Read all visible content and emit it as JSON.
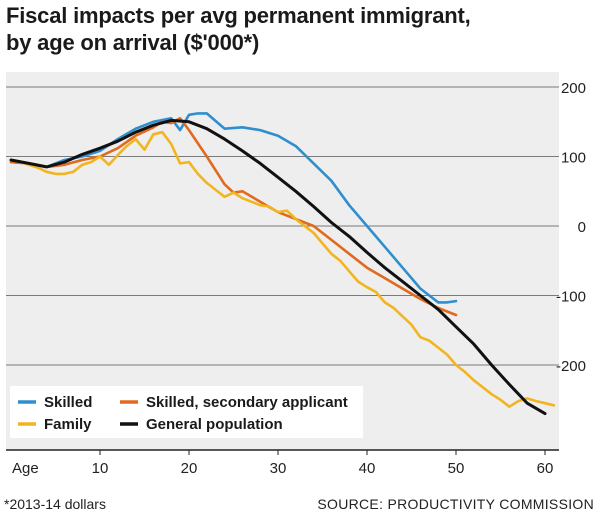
{
  "title_line1": "Fiscal impacts per avg permanent immigrant,",
  "title_line2": "by age on arrival ($'000*)",
  "footnote": "*2013-14 dollars",
  "source": "SOURCE: PRODUCTIVITY COMMISSION",
  "chart_data": {
    "type": "line",
    "title": "Fiscal impacts per avg permanent immigrant, by age on arrival ($'000*)",
    "xlabel": "Age",
    "ylabel": "",
    "xlim": [
      0,
      62
    ],
    "ylim": [
      -290,
      200
    ],
    "x_ticks": [
      10,
      20,
      30,
      40,
      50,
      60
    ],
    "y_ticks": [
      200,
      100,
      0,
      -100,
      -200
    ],
    "y_tick_labels": [
      "200",
      "100",
      "0",
      "-100",
      "-200"
    ],
    "grid": "horizontal",
    "legend_position": "bottom-left",
    "series": [
      {
        "name": "Skilled",
        "color": "#2f8fce",
        "x": [
          0,
          2,
          4,
          6,
          8,
          10,
          12,
          14,
          16,
          18,
          19,
          20,
          21,
          22,
          24,
          26,
          28,
          30,
          32,
          34,
          36,
          38,
          40,
          42,
          44,
          46,
          48,
          49,
          50
        ],
        "values": [
          92,
          90,
          85,
          95,
          100,
          108,
          125,
          140,
          150,
          155,
          138,
          160,
          162,
          162,
          140,
          142,
          138,
          130,
          115,
          90,
          65,
          30,
          0,
          -30,
          -60,
          -90,
          -110,
          -110,
          -108
        ]
      },
      {
        "name": "Skilled, secondary applicant",
        "color": "#e06a1e",
        "x": [
          0,
          2,
          4,
          6,
          8,
          10,
          12,
          14,
          16,
          17,
          18,
          19,
          20,
          22,
          24,
          25,
          26,
          28,
          30,
          32,
          34,
          36,
          38,
          40,
          42,
          44,
          46,
          48,
          50
        ],
        "values": [
          92,
          90,
          85,
          88,
          95,
          100,
          112,
          130,
          142,
          150,
          148,
          155,
          138,
          100,
          60,
          48,
          50,
          35,
          20,
          10,
          0,
          -20,
          -40,
          -60,
          -75,
          -90,
          -105,
          -118,
          -128
        ]
      },
      {
        "name": "Family",
        "color": "#f2b41f",
        "x": [
          0,
          1,
          2,
          3,
          4,
          5,
          6,
          7,
          8,
          9,
          10,
          11,
          12,
          13,
          14,
          15,
          16,
          17,
          18,
          19,
          20,
          21,
          22,
          23,
          24,
          25,
          26,
          27,
          28,
          29,
          30,
          31,
          32,
          33,
          34,
          35,
          36,
          37,
          38,
          39,
          40,
          41,
          42,
          43,
          44,
          45,
          46,
          47,
          48,
          49,
          50,
          51,
          52,
          53,
          54,
          55,
          56,
          57,
          58,
          59,
          60,
          61
        ],
        "values": [
          95,
          92,
          88,
          84,
          78,
          75,
          75,
          78,
          88,
          92,
          100,
          88,
          102,
          115,
          125,
          110,
          132,
          135,
          118,
          90,
          92,
          75,
          62,
          52,
          42,
          48,
          40,
          35,
          30,
          28,
          20,
          22,
          10,
          0,
          -10,
          -25,
          -40,
          -50,
          -65,
          -80,
          -88,
          -95,
          -110,
          -118,
          -130,
          -142,
          -160,
          -165,
          -175,
          -185,
          -200,
          -210,
          -222,
          -232,
          -242,
          -250,
          -260,
          -252,
          -248,
          -252,
          -255,
          -258
        ]
      },
      {
        "name": "General population",
        "color": "#111111",
        "x": [
          0,
          2,
          4,
          6,
          8,
          10,
          12,
          14,
          16,
          18,
          20,
          22,
          24,
          26,
          28,
          30,
          32,
          34,
          36,
          38,
          40,
          42,
          44,
          46,
          48,
          50,
          52,
          54,
          56,
          58,
          60
        ],
        "values": [
          95,
          90,
          85,
          92,
          103,
          112,
          122,
          135,
          145,
          152,
          150,
          140,
          125,
          108,
          90,
          70,
          50,
          28,
          5,
          -15,
          -38,
          -60,
          -80,
          -100,
          -120,
          -145,
          -170,
          -200,
          -228,
          -255,
          -270
        ]
      }
    ]
  }
}
